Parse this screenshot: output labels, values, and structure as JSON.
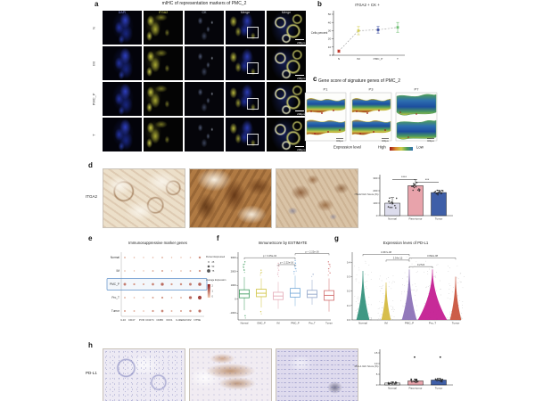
{
  "figure": {
    "labels": {
      "a": "a",
      "b": "b",
      "c": "c",
      "d": "d",
      "e": "e",
      "f": "f",
      "g": "g",
      "h": "h"
    },
    "panel_a": {
      "title": "mIHC of representation markers of PMC_2",
      "columns": [
        "DAPI",
        "ITGA2",
        "CK",
        "Merge",
        "Merge"
      ],
      "column_colors": [
        "#8d97e8",
        "#d8da5e",
        "#c2cede",
        "#e0e0e0",
        "#e0e0e0"
      ],
      "rows": [
        "N",
        "IM",
        "PMC_P",
        "T"
      ],
      "scale_bar": "200μm"
    },
    "panel_c": {
      "title": "Gene score of signature genes of PMC_2",
      "maps": [
        "P1",
        "P3",
        "P7"
      ],
      "scale_bar": "400μm",
      "legend_label": "Expression level",
      "legend_high": "High",
      "legend_low": "Low",
      "legend_colors": [
        "#a01515",
        "#d8862b",
        "#cfcf4a",
        "#4f9e58",
        "#2d6fb0"
      ]
    },
    "panel_d": {
      "row_label": "ITGA2"
    },
    "panel_h": {
      "row_label": "PD-L1"
    }
  },
  "chart_data": [
    {
      "id": "b",
      "type": "line",
      "title": "ITGA2 + CK +",
      "ylabel": "Cells percent",
      "categories": [
        "N",
        "IM",
        "PMC_P",
        "T"
      ],
      "values": [
        5,
        30,
        31,
        34
      ],
      "errors": [
        1.5,
        5,
        4,
        6
      ],
      "colors": [
        "#c0392b",
        "#d6d05a",
        "#3f51a3",
        "#6fbf73"
      ],
      "ylim": [
        0,
        50
      ],
      "yticks": [
        0,
        10,
        20,
        30,
        40,
        50
      ],
      "line_style": "dashed"
    },
    {
      "id": "d",
      "type": "bar",
      "title": "",
      "ylabel": "ITGA2 IHC Score (%)",
      "categories": [
        "Normal",
        "Para-tumor",
        "Tumor"
      ],
      "values": [
        100,
        240,
        185
      ],
      "errors": [
        45,
        50,
        20
      ],
      "bar_colors": [
        "#dcdcec",
        "#e8a3ab",
        "#3f5fa8"
      ],
      "ylim": [
        0,
        300
      ],
      "yticks": [
        0,
        100,
        200,
        300
      ],
      "outliers": [
        [],
        [],
        []
      ],
      "significance": [
        {
          "from": 0,
          "to": 1,
          "label": "****",
          "level": 290
        },
        {
          "from": 1,
          "to": 2,
          "label": "***",
          "level": 268
        }
      ]
    },
    {
      "id": "e",
      "type": "dotplot",
      "title": "Immunosuppressive marker genes",
      "rows": [
        "Normal",
        "IM",
        "PMC_P",
        "Pro_T",
        "Tumor"
      ],
      "genes": [
        "IL10",
        "CD47",
        "PVR",
        "CD274",
        "CD86",
        "IDO1",
        "IL4I1",
        "HAVCR2",
        "NT5E"
      ],
      "highlight_row": "PMC_P",
      "percent": [
        [
          20,
          15,
          10,
          15,
          20,
          10,
          10,
          15,
          35
        ],
        [
          15,
          10,
          10,
          20,
          25,
          10,
          15,
          20,
          30
        ],
        [
          45,
          30,
          25,
          40,
          55,
          30,
          35,
          45,
          60
        ],
        [
          20,
          15,
          10,
          25,
          30,
          15,
          20,
          55,
          75
        ],
        [
          25,
          20,
          15,
          30,
          40,
          20,
          25,
          35,
          50
        ]
      ],
      "legend": {
        "size_title": "Percent Expressed",
        "size_values": [
          25,
          50,
          75
        ],
        "color_title": "Average Expression",
        "color_values": [
          2,
          1,
          0
        ],
        "color_scale": [
          "#f3cdb4",
          "#8b1a1a"
        ]
      }
    },
    {
      "id": "f",
      "type": "box",
      "title": "ImmuneScore by ESTIMATE",
      "categories": [
        "Normal",
        "GMC_P",
        "IM",
        "PMC_P",
        "Pro_T",
        "Tumor"
      ],
      "colors": [
        "#3f9b5f",
        "#cfc23e",
        "#e4a9b6",
        "#74a9d8",
        "#8fa3c8",
        "#d06a6a"
      ],
      "ylim": [
        -1500,
        3400
      ],
      "yticks": [
        -1000,
        0,
        1000,
        2000,
        3000
      ],
      "boxes": [
        {
          "lo": -800,
          "q1": 100,
          "med": 380,
          "q3": 680,
          "hi": 1600,
          "outliers": [
            2100,
            2300,
            2500,
            2700,
            -1200
          ]
        },
        {
          "lo": -600,
          "q1": 180,
          "med": 430,
          "q3": 720,
          "hi": 1500,
          "outliers": [
            1900,
            2100,
            -900
          ]
        },
        {
          "lo": -700,
          "q1": -30,
          "med": 230,
          "q3": 500,
          "hi": 1250,
          "outliers": [
            1800,
            2100,
            2400,
            2600
          ]
        },
        {
          "lo": -500,
          "q1": 150,
          "med": 430,
          "q3": 780,
          "hi": 1700,
          "outliers": [
            2000,
            2200,
            2400,
            2600,
            2800
          ]
        },
        {
          "lo": -400,
          "q1": 120,
          "med": 360,
          "q3": 640,
          "hi": 1400,
          "outliers": [
            1800
          ]
        },
        {
          "lo": -900,
          "q1": -80,
          "med": 280,
          "q3": 620,
          "hi": 1500,
          "outliers": [
            1900,
            2200,
            2500,
            2700
          ]
        }
      ],
      "pvalues": [
        {
          "from": 0,
          "to": 3,
          "label": "p = 3.05e-04",
          "level": 3000
        },
        {
          "from": 2,
          "to": 3,
          "label": "p < 2.22e-16",
          "level": 2500
        },
        {
          "from": 3,
          "to": 5,
          "label": "p < 2.22e-16",
          "level": 3300
        }
      ]
    },
    {
      "id": "g",
      "type": "violin",
      "title": "Expression leves of PD-L1",
      "categories": [
        "Normal",
        "IM",
        "PMC_P",
        "Pro_T",
        "Tumor"
      ],
      "colors": [
        "#2f8f7a",
        "#d4b83c",
        "#8a6fb5",
        "#c2188f",
        "#c8503a"
      ],
      "ylim": [
        0,
        0.47
      ],
      "yticks": [
        0.0,
        0.1,
        0.2,
        0.3,
        0.4
      ],
      "max_values": [
        0.34,
        0.26,
        0.35,
        0.35,
        0.3
      ],
      "half_widths": [
        7,
        5,
        8,
        16,
        6
      ],
      "pvalues": [
        {
          "from": 0,
          "to": 2,
          "label": "3.457e-08",
          "level": 0.455
        },
        {
          "from": 1,
          "to": 2,
          "label": "3.34e-12",
          "level": 0.415
        },
        {
          "from": 2,
          "to": 4,
          "label": "3.092e-08",
          "level": 0.43
        },
        {
          "from": 2,
          "to": 3,
          "label": "0.2724",
          "level": 0.37
        }
      ]
    },
    {
      "id": "h",
      "type": "bar",
      "title": "",
      "ylabel": "PD-L1 IHC Score (%)",
      "categories": [
        "Normal",
        "Para-tumor",
        "Tumor"
      ],
      "values": [
        0.9,
        1.9,
        2.3
      ],
      "errors": [
        0.5,
        0.9,
        0.8
      ],
      "bar_colors": [
        "#e6e6e6",
        "#e8a3ab",
        "#3f5fa8"
      ],
      "ylim": [
        0,
        15
      ],
      "yticks": [
        0,
        5,
        10,
        15
      ],
      "outliers": [
        [],
        [
          13
        ],
        [
          13
        ]
      ],
      "significance": []
    }
  ]
}
